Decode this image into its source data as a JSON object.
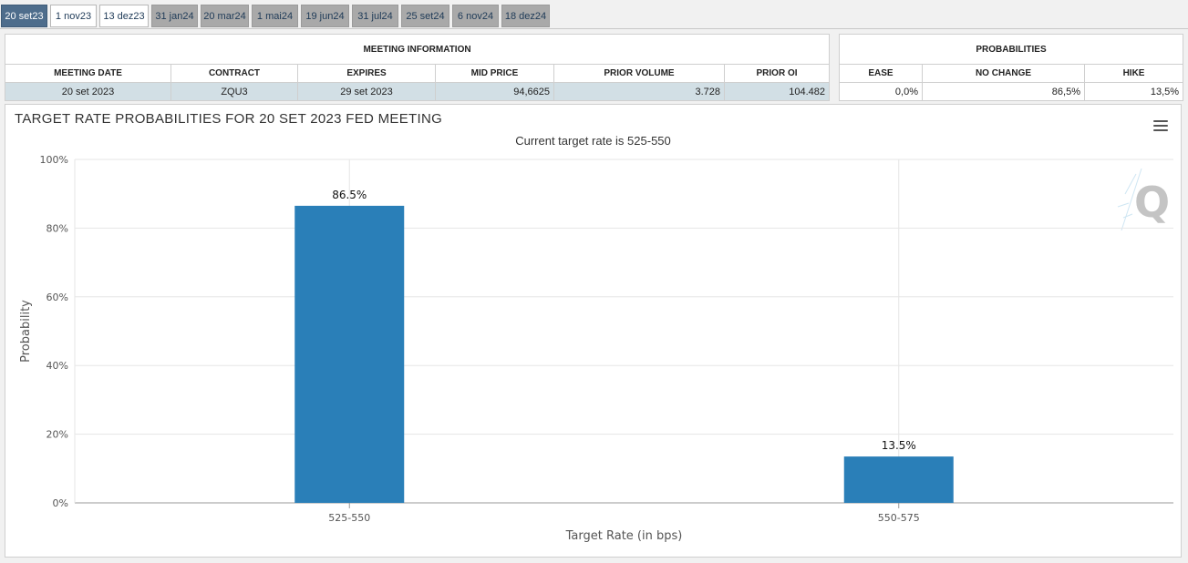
{
  "tabs": [
    {
      "label": "20 set23",
      "state": "active"
    },
    {
      "label": "1 nov23",
      "state": "available"
    },
    {
      "label": "13 dez23",
      "state": "available"
    },
    {
      "label": "31 jan24",
      "state": "inactive"
    },
    {
      "label": "20 mar24",
      "state": "inactive"
    },
    {
      "label": "1 mai24",
      "state": "inactive"
    },
    {
      "label": "19 jun24",
      "state": "inactive"
    },
    {
      "label": "31 jul24",
      "state": "inactive"
    },
    {
      "label": "25 set24",
      "state": "inactive"
    },
    {
      "label": "6 nov24",
      "state": "inactive"
    },
    {
      "label": "18 dez24",
      "state": "inactive"
    }
  ],
  "meeting_info": {
    "caption": "MEETING INFORMATION",
    "headers": {
      "meeting_date": "MEETING DATE",
      "contract": "CONTRACT",
      "expires": "EXPIRES",
      "mid_price": "MID PRICE",
      "prior_volume": "PRIOR VOLUME",
      "prior_oi": "PRIOR OI"
    },
    "row": {
      "meeting_date": "20 set 2023",
      "contract": "ZQU3",
      "expires": "29 set 2023",
      "mid_price": "94,6625",
      "prior_volume": "3.728",
      "prior_oi": "104.482"
    }
  },
  "probabilities": {
    "caption": "PROBABILITIES",
    "headers": {
      "ease": "EASE",
      "no_change": "NO CHANGE",
      "hike": "HIKE"
    },
    "row": {
      "ease": "0,0%",
      "no_change": "86,5%",
      "hike": "13,5%"
    }
  },
  "chart": {
    "menu_icon": "hamburger-menu-icon",
    "logo_icon": "quikstrike-q-logo-icon"
  },
  "chart_data": {
    "type": "bar",
    "title": "TARGET RATE PROBABILITIES FOR 20 SET 2023 FED MEETING",
    "subtitle": "Current target rate is 525-550",
    "xlabel": "Target Rate (in bps)",
    "ylabel": "Probability",
    "categories": [
      "525-550",
      "550-575"
    ],
    "values": [
      86.5,
      13.5
    ],
    "value_labels": [
      "86.5%",
      "13.5%"
    ],
    "ylim": [
      0,
      100
    ],
    "yticks": [
      "0%",
      "20%",
      "40%",
      "60%",
      "80%",
      "100%"
    ],
    "grid": true,
    "bar_color": "#2a7fb8"
  }
}
